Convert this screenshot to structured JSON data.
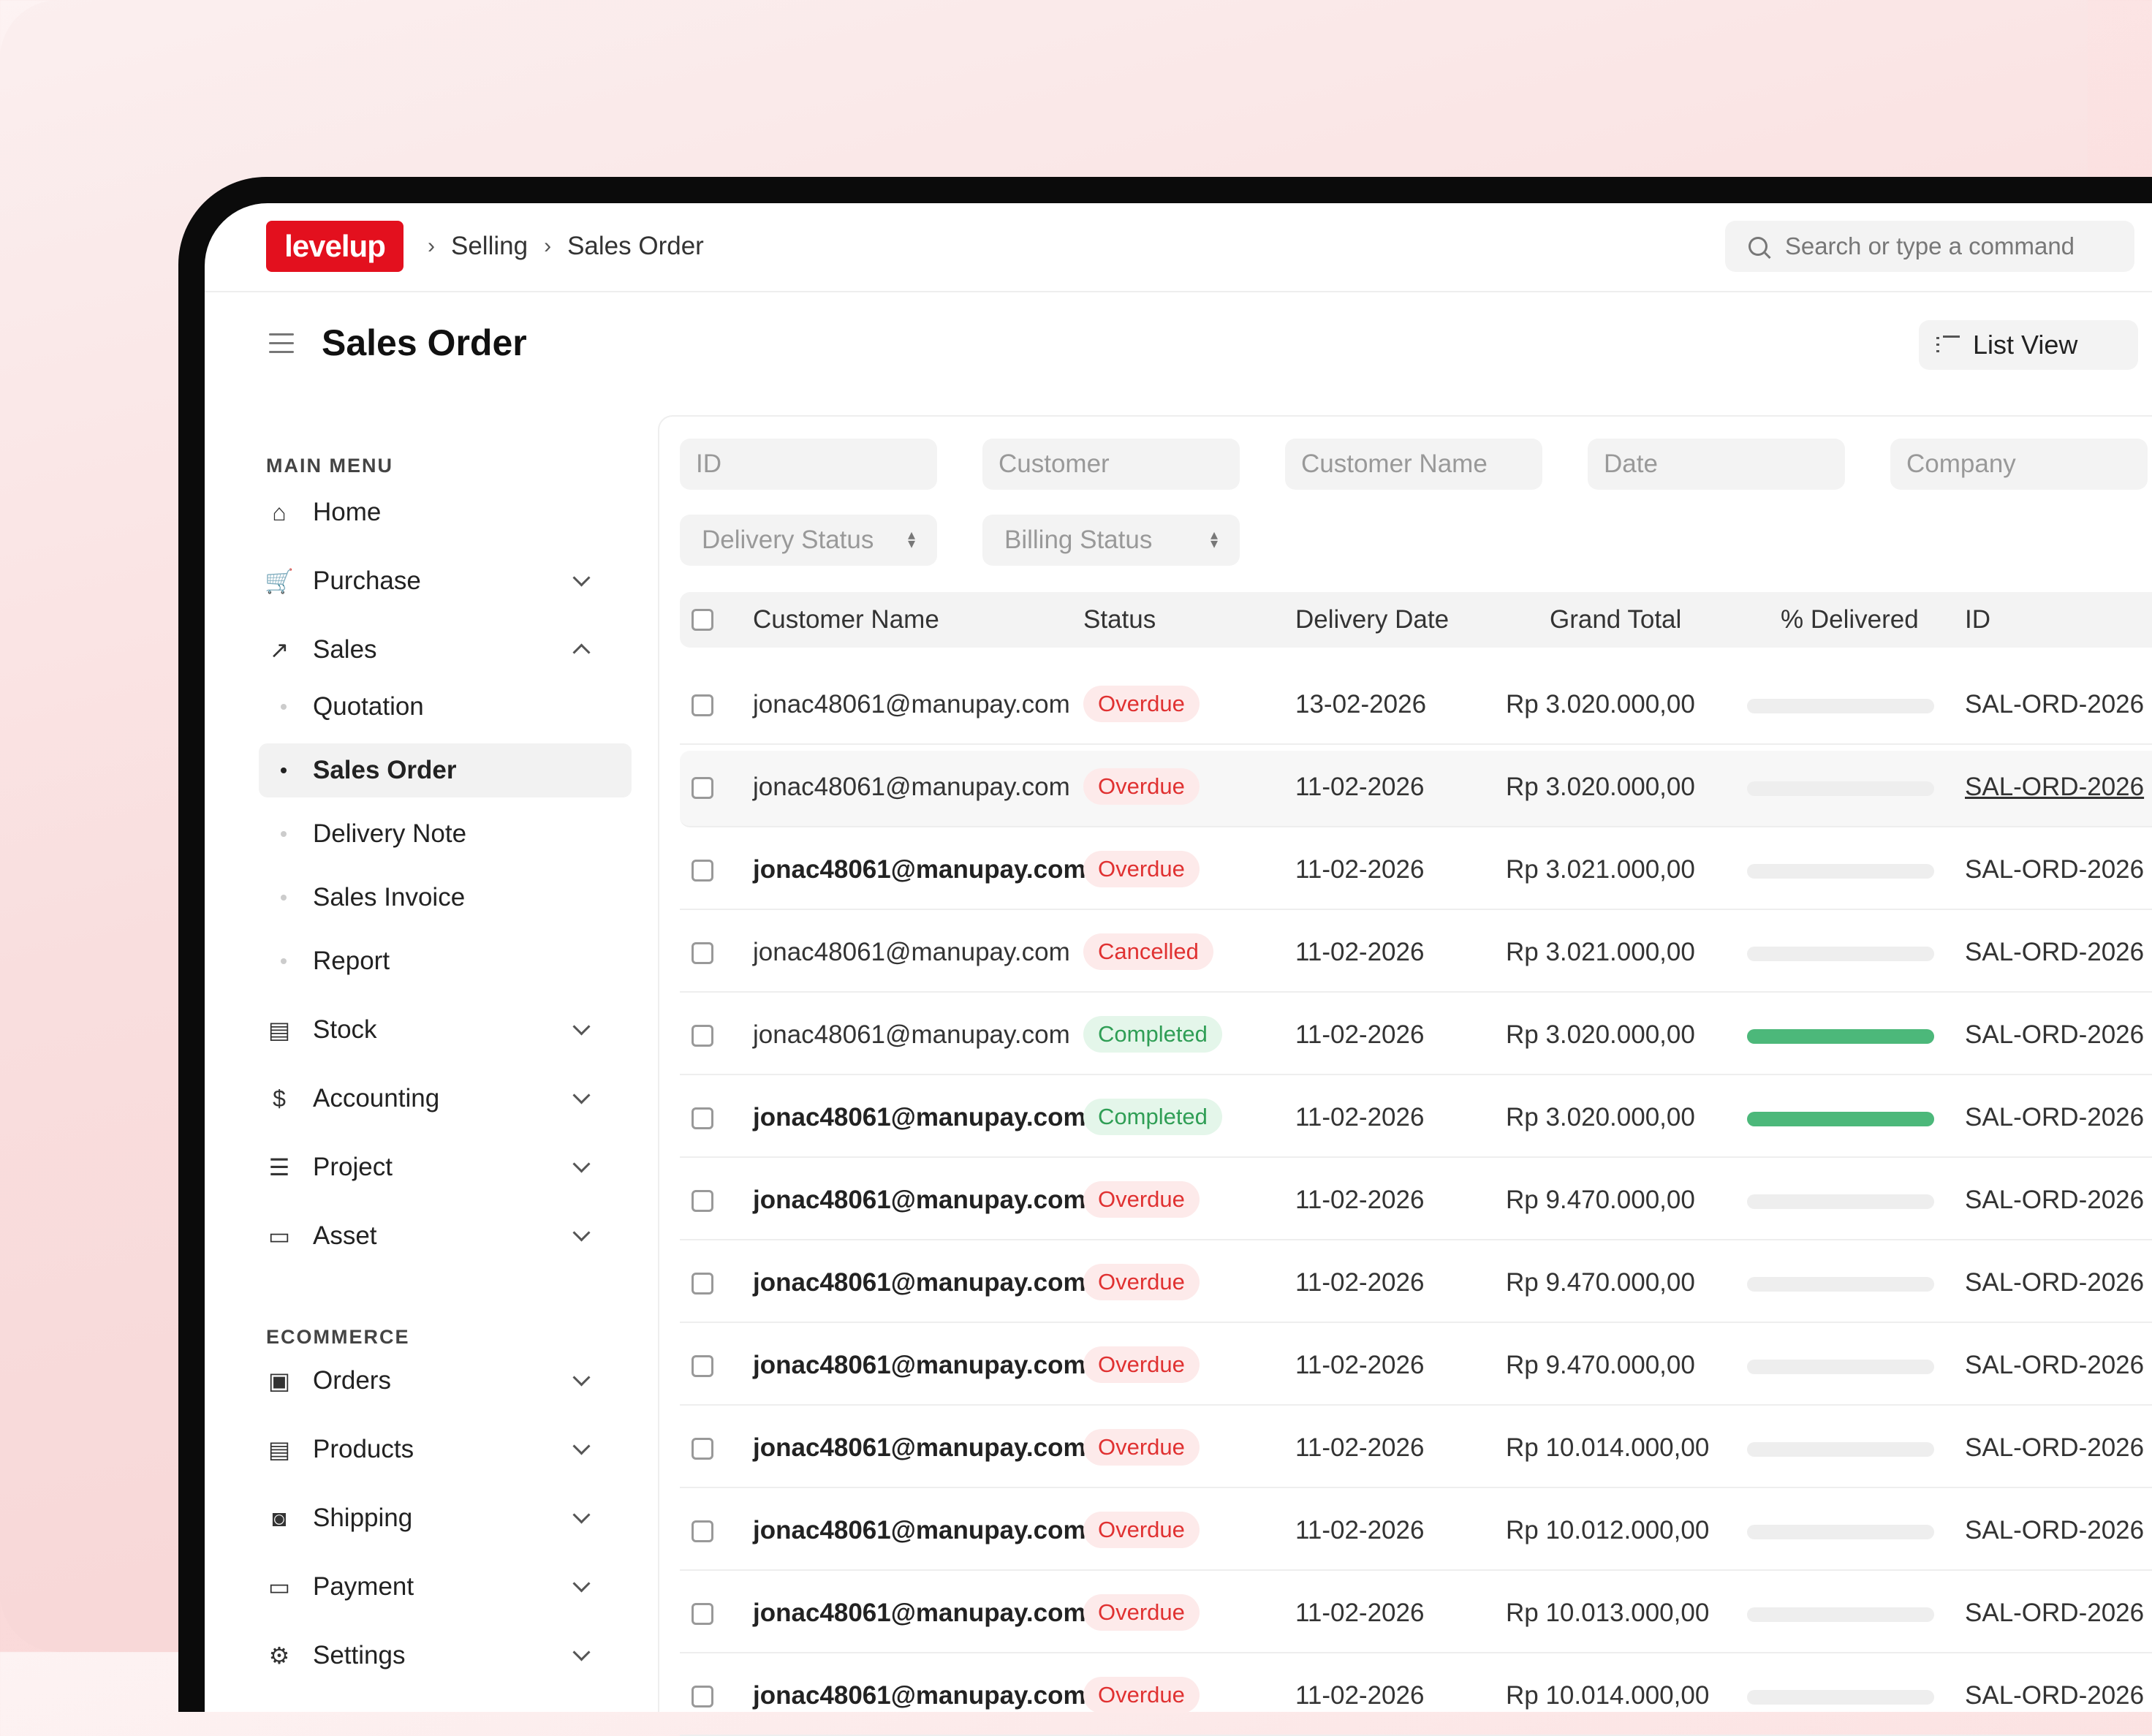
{
  "app": {
    "logo_text": "levelup"
  },
  "breadcrumb": [
    "Selling",
    "Sales Order"
  ],
  "search": {
    "placeholder": "Search or type a command"
  },
  "page": {
    "title": "Sales Order",
    "view_button": "List View"
  },
  "sidebar": {
    "sections": [
      {
        "title": "MAIN MENU"
      },
      {
        "title": "ECOMMERCE"
      }
    ],
    "main": [
      {
        "label": "Home",
        "icon": "home-icon",
        "chevron": ""
      },
      {
        "label": "Purchase",
        "icon": "cart-icon",
        "chevron": "down"
      },
      {
        "label": "Sales",
        "icon": "trend-icon",
        "chevron": "up"
      }
    ],
    "sales_sub": [
      {
        "label": "Quotation",
        "active": false
      },
      {
        "label": "Sales Order",
        "active": true
      },
      {
        "label": "Delivery Note",
        "active": false
      },
      {
        "label": "Sales Invoice",
        "active": false
      },
      {
        "label": "Report",
        "active": false
      }
    ],
    "main_rest": [
      {
        "label": "Stock",
        "icon": "stock-icon"
      },
      {
        "label": "Accounting",
        "icon": "dollar-icon"
      },
      {
        "label": "Project",
        "icon": "list-icon"
      },
      {
        "label": "Asset",
        "icon": "folder-icon"
      }
    ],
    "ecommerce": [
      {
        "label": "Orders",
        "icon": "orders-icon"
      },
      {
        "label": "Products",
        "icon": "products-icon"
      },
      {
        "label": "Shipping",
        "icon": "car-icon"
      },
      {
        "label": "Payment",
        "icon": "card-icon"
      },
      {
        "label": "Settings",
        "icon": "gear-icon"
      }
    ]
  },
  "filters": {
    "text": [
      "ID",
      "Customer",
      "Customer Name",
      "Date",
      "Company"
    ],
    "selects": [
      "Delivery Status",
      "Billing Status"
    ]
  },
  "table": {
    "headers": [
      "Customer Name",
      "Status",
      "Delivery Date",
      "Grand Total",
      "% Delivered",
      "ID"
    ],
    "rows": [
      {
        "customer": "jonac48061@manupay.com",
        "bold": false,
        "status": "Overdue",
        "status_color": "red",
        "date": "13-02-2026",
        "total": "Rp 3.020.000,00",
        "delivered": 0,
        "id": "SAL-ORD-2026"
      },
      {
        "customer": "jonac48061@manupay.com",
        "bold": false,
        "status": "Overdue",
        "status_color": "red",
        "date": "11-02-2026",
        "total": "Rp 3.020.000,00",
        "delivered": 0,
        "id": "SAL-ORD-2026"
      },
      {
        "customer": "jonac48061@manupay.com",
        "bold": true,
        "status": "Overdue",
        "status_color": "red",
        "date": "11-02-2026",
        "total": "Rp 3.021.000,00",
        "delivered": 0,
        "id": "SAL-ORD-2026"
      },
      {
        "customer": "jonac48061@manupay.com",
        "bold": false,
        "status": "Cancelled",
        "status_color": "red",
        "date": "11-02-2026",
        "total": "Rp 3.021.000,00",
        "delivered": 0,
        "id": "SAL-ORD-2026"
      },
      {
        "customer": "jonac48061@manupay.com",
        "bold": false,
        "status": "Completed",
        "status_color": "green",
        "date": "11-02-2026",
        "total": "Rp 3.020.000,00",
        "delivered": 100,
        "id": "SAL-ORD-2026"
      },
      {
        "customer": "jonac48061@manupay.com",
        "bold": true,
        "status": "Completed",
        "status_color": "green",
        "date": "11-02-2026",
        "total": "Rp 3.020.000,00",
        "delivered": 100,
        "id": "SAL-ORD-2026"
      },
      {
        "customer": "jonac48061@manupay.com",
        "bold": true,
        "status": "Overdue",
        "status_color": "red",
        "date": "11-02-2026",
        "total": "Rp 9.470.000,00",
        "delivered": 0,
        "id": "SAL-ORD-2026"
      },
      {
        "customer": "jonac48061@manupay.com",
        "bold": true,
        "status": "Overdue",
        "status_color": "red",
        "date": "11-02-2026",
        "total": "Rp 9.470.000,00",
        "delivered": 0,
        "id": "SAL-ORD-2026"
      },
      {
        "customer": "jonac48061@manupay.com",
        "bold": true,
        "status": "Overdue",
        "status_color": "red",
        "date": "11-02-2026",
        "total": "Rp 9.470.000,00",
        "delivered": 0,
        "id": "SAL-ORD-2026"
      },
      {
        "customer": "jonac48061@manupay.com",
        "bold": true,
        "status": "Overdue",
        "status_color": "red",
        "date": "11-02-2026",
        "total": "Rp 10.014.000,00",
        "delivered": 0,
        "id": "SAL-ORD-2026"
      },
      {
        "customer": "jonac48061@manupay.com",
        "bold": true,
        "status": "Overdue",
        "status_color": "red",
        "date": "11-02-2026",
        "total": "Rp 10.012.000,00",
        "delivered": 0,
        "id": "SAL-ORD-2026"
      },
      {
        "customer": "jonac48061@manupay.com",
        "bold": true,
        "status": "Overdue",
        "status_color": "red",
        "date": "11-02-2026",
        "total": "Rp 10.013.000,00",
        "delivered": 0,
        "id": "SAL-ORD-2026"
      },
      {
        "customer": "jonac48061@manupay.com",
        "bold": true,
        "status": "Overdue",
        "status_color": "red",
        "date": "11-02-2026",
        "total": "Rp 10.014.000,00",
        "delivered": 0,
        "id": "SAL-ORD-2026"
      }
    ]
  },
  "colors": {
    "brand": "#e3101e",
    "overdue": "#e03131",
    "completed": "#2f9e55",
    "progress": "#4cb87a"
  }
}
